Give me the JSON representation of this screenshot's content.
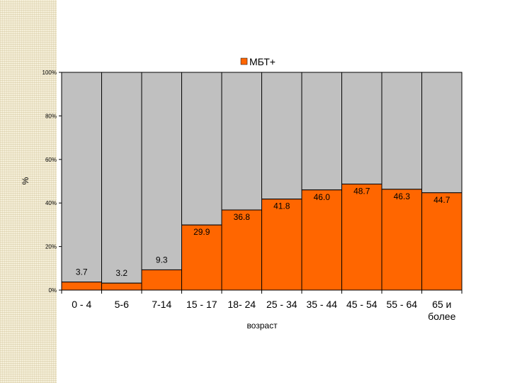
{
  "chart_data": {
    "type": "bar",
    "stacked_percent": true,
    "categories": [
      "0 - 4",
      "5-6",
      "7-14",
      "15 - 17",
      "18- 24",
      "25 - 34",
      "35 - 44",
      "45 - 54",
      "55 - 64",
      "65 и более"
    ],
    "series": [
      {
        "name": "МБТ+",
        "values": [
          3.7,
          3.2,
          9.3,
          29.9,
          36.8,
          41.8,
          46.0,
          48.7,
          46.3,
          44.7
        ],
        "color": "#ff6600"
      },
      {
        "values": [
          96.3,
          96.8,
          90.7,
          70.1,
          63.2,
          58.2,
          54.0,
          51.3,
          53.7,
          55.3
        ],
        "color": "#c0c0c0"
      }
    ],
    "data_labels": [
      "3.7",
      "3.2",
      "9.3",
      "29.9",
      "36.8",
      "41.8",
      "46.0",
      "48.7",
      "46.3",
      "44.7"
    ],
    "y_ticks": [
      "0%",
      "20%",
      "40%",
      "60%",
      "80%",
      "100%"
    ],
    "ylim": [
      0,
      100
    ],
    "xlabel": "возраст",
    "ylabel": "%",
    "legend": "top",
    "grid": false
  }
}
